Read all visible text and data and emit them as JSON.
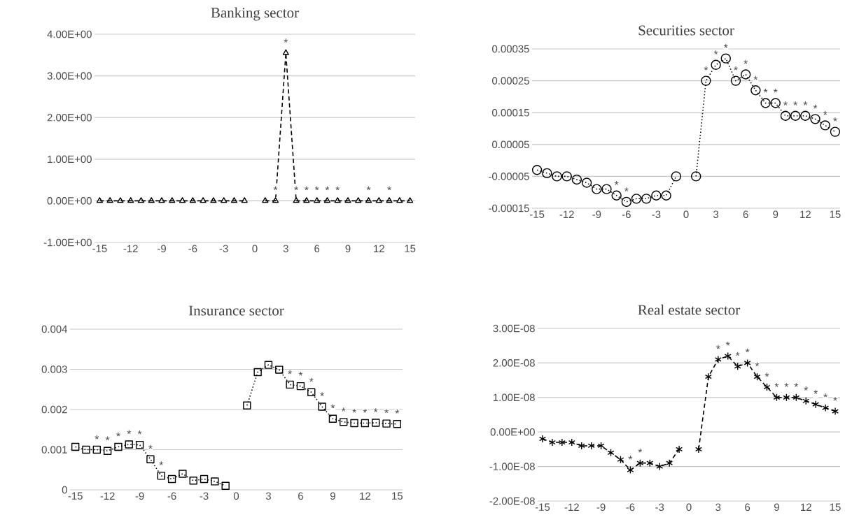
{
  "chart_data": [
    {
      "type": "line",
      "title": "Banking sector",
      "color": "#000000",
      "marker": "triangle",
      "line_style": "dashed",
      "grid": "y",
      "x": [
        -15,
        -14,
        -13,
        -12,
        -11,
        -10,
        -9,
        -8,
        -7,
        -6,
        -5,
        -4,
        -3,
        -2,
        -1,
        0,
        1,
        2,
        3,
        4,
        5,
        6,
        7,
        8,
        9,
        10,
        11,
        12,
        13,
        14,
        15
      ],
      "values": [
        0,
        0,
        0,
        0,
        0,
        0,
        0,
        0,
        0,
        0,
        0,
        0,
        0,
        0,
        0,
        null,
        0,
        0,
        3.55,
        0,
        0,
        0,
        0,
        0,
        0,
        0,
        0,
        0,
        0,
        0,
        0
      ],
      "value_labels": [
        null,
        null,
        null,
        null,
        null,
        null,
        null,
        null,
        null,
        null,
        null,
        null,
        null,
        null,
        null,
        null,
        null,
        "*",
        "*",
        "*",
        "*",
        "*",
        "*",
        "*",
        null,
        null,
        "*",
        null,
        "*",
        null,
        null
      ],
      "xlim": [
        -15.5,
        15.5
      ],
      "xticks": [
        -15,
        -12,
        -9,
        -6,
        -3,
        0,
        3,
        6,
        9,
        12,
        15
      ],
      "ylim": [
        -1,
        4
      ],
      "yticks": [
        {
          "value": -1,
          "label": "-1.00E+00"
        },
        {
          "value": 0,
          "label": "0.00E+00"
        },
        {
          "value": 1,
          "label": "1.00E+00"
        },
        {
          "value": 2,
          "label": "2.00E+00"
        },
        {
          "value": 3,
          "label": "3.00E+00"
        },
        {
          "value": 4,
          "label": "4.00E+00"
        }
      ]
    },
    {
      "type": "line",
      "title": "Securities sector",
      "color": "#000000",
      "marker": "circle",
      "line_style": "dotted",
      "grid": "y",
      "x": [
        -15,
        -14,
        -13,
        -12,
        -11,
        -10,
        -9,
        -8,
        -7,
        -6,
        -5,
        -4,
        -3,
        -2,
        -1,
        0,
        1,
        2,
        3,
        4,
        5,
        6,
        7,
        8,
        9,
        10,
        11,
        12,
        13,
        14,
        15
      ],
      "values": [
        -3e-05,
        -4e-05,
        -5e-05,
        -5e-05,
        -6e-05,
        -7e-05,
        -9e-05,
        -9e-05,
        -0.00011,
        -0.00013,
        -0.00012,
        -0.00012,
        -0.00011,
        -0.00011,
        -5e-05,
        null,
        -5e-05,
        0.00025,
        0.0003,
        0.00032,
        0.00025,
        0.00027,
        0.00022,
        0.00018,
        0.00018,
        0.00014,
        0.00014,
        0.00014,
        0.00013,
        0.00011,
        9e-05
      ],
      "value_labels": [
        null,
        null,
        null,
        null,
        null,
        null,
        null,
        null,
        "*",
        "*",
        null,
        null,
        null,
        null,
        null,
        null,
        null,
        "*",
        "*",
        "*",
        "*",
        "*",
        "*",
        "*",
        "*",
        "*",
        "*",
        "*",
        "*",
        "*",
        "*"
      ],
      "xlim": [
        -15.5,
        15.5
      ],
      "xticks": [
        -15,
        -12,
        -9,
        -6,
        -3,
        0,
        3,
        6,
        9,
        12,
        15
      ],
      "ylim": [
        -0.00015,
        0.00035
      ],
      "yticks": [
        {
          "value": -0.00015,
          "label": "-0.00015"
        },
        {
          "value": -5e-05,
          "label": "-0.00005"
        },
        {
          "value": 5e-05,
          "label": "0.00005"
        },
        {
          "value": 0.00015,
          "label": "0.00015"
        },
        {
          "value": 0.00025,
          "label": "0.00025"
        },
        {
          "value": 0.00035,
          "label": "0.00035"
        }
      ]
    },
    {
      "type": "line",
      "title": "Insurance sector",
      "color": "#000000",
      "marker": "square",
      "line_style": "dotted",
      "grid": "y",
      "x": [
        -15,
        -14,
        -13,
        -12,
        -11,
        -10,
        -9,
        -8,
        -7,
        -6,
        -5,
        -4,
        -3,
        -2,
        -1,
        0,
        1,
        2,
        3,
        4,
        5,
        6,
        7,
        8,
        9,
        10,
        11,
        12,
        13,
        14,
        15
      ],
      "values": [
        0.00107,
        0.001,
        0.001,
        0.00097,
        0.00107,
        0.00113,
        0.00112,
        0.00076,
        0.00035,
        0.00027,
        0.0004,
        0.00023,
        0.00027,
        0.00021,
        0.0001,
        null,
        0.0021,
        0.00293,
        0.00311,
        0.00299,
        0.00262,
        0.00258,
        0.00243,
        0.00207,
        0.00177,
        0.00169,
        0.00166,
        0.00166,
        0.00167,
        0.00165,
        0.00164
      ],
      "value_labels": [
        null,
        null,
        "*",
        "*",
        "*",
        "*",
        "*",
        "*",
        "*",
        null,
        null,
        null,
        null,
        null,
        null,
        null,
        null,
        null,
        null,
        null,
        "*",
        "*",
        "*",
        "*",
        "*",
        "*",
        "*",
        "*",
        "*",
        "*",
        "*"
      ],
      "xlim": [
        -15.5,
        15.5
      ],
      "xticks": [
        -15,
        -12,
        -9,
        -6,
        -3,
        0,
        3,
        6,
        9,
        12,
        15
      ],
      "ylim": [
        0,
        0.004
      ],
      "yticks": [
        0,
        0.001,
        0.002,
        0.003,
        0.004
      ]
    },
    {
      "type": "line",
      "title": "Real estate sector",
      "color": "#000000",
      "marker": "cross",
      "line_style": "dashed",
      "grid": "y",
      "x": [
        -15,
        -14,
        -13,
        -12,
        -11,
        -10,
        -9,
        -8,
        -7,
        -6,
        -5,
        -4,
        -3,
        -2,
        -1,
        0,
        1,
        2,
        3,
        4,
        5,
        6,
        7,
        8,
        9,
        10,
        11,
        12,
        13,
        14,
        15
      ],
      "values": [
        -2e-09,
        -3e-09,
        -3e-09,
        -3e-09,
        -4e-09,
        -4e-09,
        -4e-09,
        -6e-09,
        -8e-09,
        -1.1e-08,
        -9e-09,
        -9e-09,
        -1e-08,
        -9e-09,
        -5e-09,
        null,
        -5e-09,
        1.6e-08,
        2.1e-08,
        2.2e-08,
        1.9e-08,
        2e-08,
        1.6e-08,
        1.3e-08,
        1e-08,
        1e-08,
        1e-08,
        9e-09,
        8e-09,
        7e-09,
        6e-09
      ],
      "value_labels": [
        null,
        null,
        null,
        null,
        null,
        null,
        null,
        null,
        null,
        "*",
        "*",
        null,
        null,
        null,
        null,
        null,
        null,
        null,
        "*",
        "*",
        "*",
        "*",
        "*",
        "*",
        "*",
        "*",
        "*",
        "*",
        "*",
        "*",
        "*"
      ],
      "xlim": [
        -15.5,
        15.5
      ],
      "xticks": [
        -15,
        -12,
        -9,
        -6,
        -3,
        0,
        3,
        6,
        9,
        12,
        15
      ],
      "ylim": [
        -2e-08,
        3e-08
      ],
      "yticks": [
        {
          "value": -2e-08,
          "label": "-2.00E-08"
        },
        {
          "value": -1e-08,
          "label": "-1.00E-08"
        },
        {
          "value": 0,
          "label": "0.00E+00"
        },
        {
          "value": 1e-08,
          "label": "1.00E-08"
        },
        {
          "value": 2e-08,
          "label": "2.00E-08"
        },
        {
          "value": 3e-08,
          "label": "3.00E-08"
        }
      ]
    }
  ]
}
